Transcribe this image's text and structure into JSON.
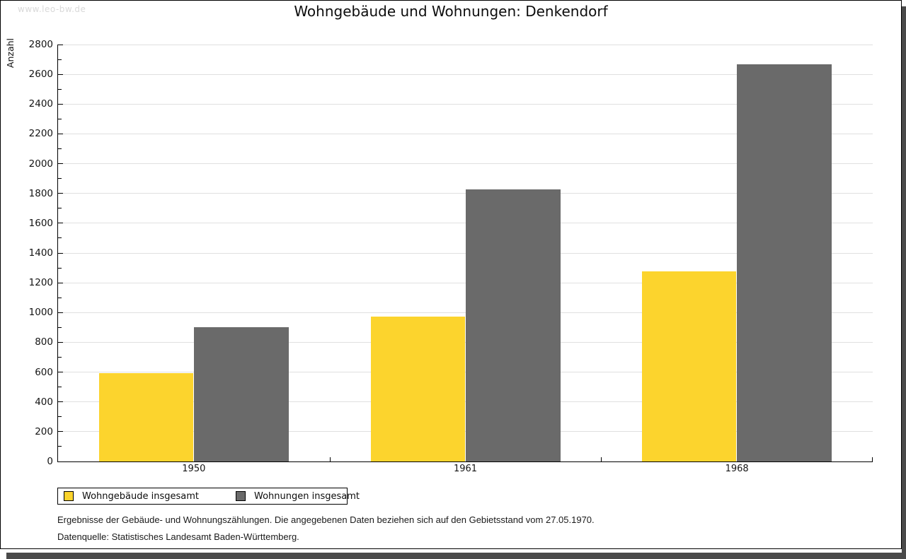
{
  "watermark": "www.leo-bw.de",
  "header": {
    "title": "Wohngebäude und Wohnungen: Denkendorf"
  },
  "chart_data": {
    "type": "bar",
    "title": "Wohngebäude und Wohnungen: Denkendorf",
    "xlabel": "",
    "ylabel": "Anzahl",
    "categories": [
      "1950",
      "1961",
      "1968"
    ],
    "series": [
      {
        "name": "Wohngebäude insgesamt",
        "color": "#FCD42D",
        "values": [
          595,
          975,
          1275
        ]
      },
      {
        "name": "Wohnungen insgesamt",
        "color": "#6A6A6A",
        "values": [
          900,
          1825,
          2665
        ]
      }
    ],
    "ylim": [
      0,
      2800
    ],
    "ytick_step": 200,
    "yminor_step": 100,
    "grid": true,
    "legend_position": "bottom-left"
  },
  "footnotes": {
    "line1": "Ergebnisse der Gebäude- und Wohnungszählungen. Die angegebenen Daten beziehen sich auf den Gebietsstand vom 27.05.1970.",
    "line2": "Datenquelle: Statistisches Landesamt Baden-Württemberg."
  },
  "colors": {
    "series1": "#FCD42D",
    "series2": "#6A6A6A",
    "gridline": "#E0E0E0",
    "axis": "#000000",
    "frame_shadow": "#4A4A4A",
    "watermark": "#D9D9D9"
  }
}
